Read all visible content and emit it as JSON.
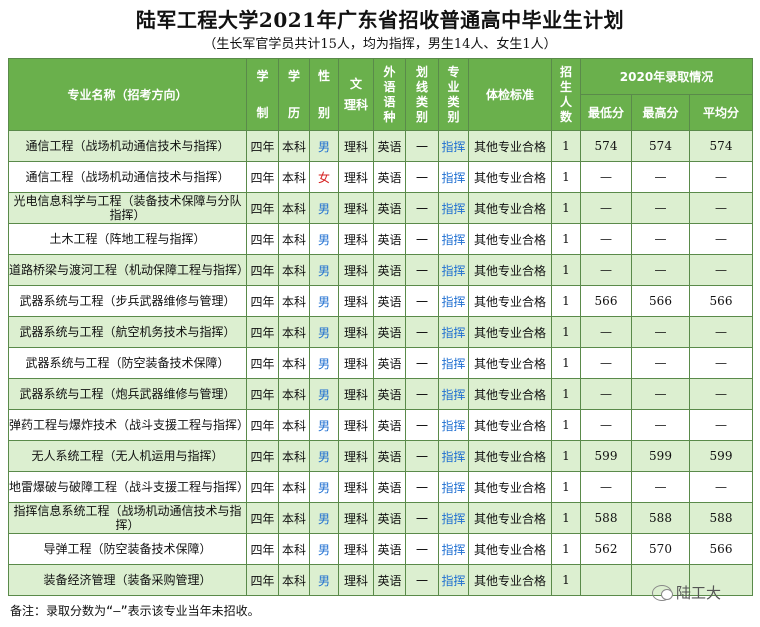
{
  "title": "陆军工程大学2021年广东省招收普通高中毕业生计划",
  "subtitle": "（生长军官学员共计15人，均为指挥，男生14人、女生1人）",
  "headers": {
    "major": "专业名称（招考方向）",
    "xuezhi": [
      "学",
      "制"
    ],
    "xueli": [
      "学",
      "历"
    ],
    "gender": [
      "性",
      "别"
    ],
    "wenli": [
      "文",
      "理科"
    ],
    "lang": [
      "外",
      "语",
      "语",
      "种"
    ],
    "line": [
      "划",
      "线",
      "类",
      "别"
    ],
    "type": [
      "专",
      "业",
      "类",
      "别"
    ],
    "physical": "体检标准",
    "quota": [
      "招",
      "生",
      "人",
      "数"
    ],
    "group2020": "2020年录取情况",
    "min": "最低分",
    "max": "最高分",
    "avg": "平均分"
  },
  "rows": [
    {
      "major": "通信工程（战场机动通信技术与指挥）",
      "xuezhi": "四年",
      "xueli": "本科",
      "gender": "男",
      "wenli": "理科",
      "lang": "英语",
      "line": "一",
      "type": "指挥",
      "physical": "其他专业合格",
      "quota": "1",
      "min": "574",
      "max": "574",
      "avg": "574"
    },
    {
      "major": "通信工程（战场机动通信技术与指挥）",
      "xuezhi": "四年",
      "xueli": "本科",
      "gender": "女",
      "wenli": "理科",
      "lang": "英语",
      "line": "一",
      "type": "指挥",
      "physical": "其他专业合格",
      "quota": "1",
      "min": "—",
      "max": "—",
      "avg": "—"
    },
    {
      "major": "光电信息科学与工程（装备技术保障与分队指挥）",
      "xuezhi": "四年",
      "xueli": "本科",
      "gender": "男",
      "wenli": "理科",
      "lang": "英语",
      "line": "一",
      "type": "指挥",
      "physical": "其他专业合格",
      "quota": "1",
      "min": "—",
      "max": "—",
      "avg": "—"
    },
    {
      "major": "土木工程（阵地工程与指挥）",
      "xuezhi": "四年",
      "xueli": "本科",
      "gender": "男",
      "wenli": "理科",
      "lang": "英语",
      "line": "一",
      "type": "指挥",
      "physical": "其他专业合格",
      "quota": "1",
      "min": "—",
      "max": "—",
      "avg": "—"
    },
    {
      "major": "道路桥梁与渡河工程（机动保障工程与指挥）",
      "xuezhi": "四年",
      "xueli": "本科",
      "gender": "男",
      "wenli": "理科",
      "lang": "英语",
      "line": "一",
      "type": "指挥",
      "physical": "其他专业合格",
      "quota": "1",
      "min": "—",
      "max": "—",
      "avg": "—"
    },
    {
      "major": "武器系统与工程（步兵武器维修与管理）",
      "xuezhi": "四年",
      "xueli": "本科",
      "gender": "男",
      "wenli": "理科",
      "lang": "英语",
      "line": "一",
      "type": "指挥",
      "physical": "其他专业合格",
      "quota": "1",
      "min": "566",
      "max": "566",
      "avg": "566"
    },
    {
      "major": "武器系统与工程（航空机务技术与指挥）",
      "xuezhi": "四年",
      "xueli": "本科",
      "gender": "男",
      "wenli": "理科",
      "lang": "英语",
      "line": "一",
      "type": "指挥",
      "physical": "其他专业合格",
      "quota": "1",
      "min": "—",
      "max": "—",
      "avg": "—"
    },
    {
      "major": "武器系统与工程（防空装备技术保障）",
      "xuezhi": "四年",
      "xueli": "本科",
      "gender": "男",
      "wenli": "理科",
      "lang": "英语",
      "line": "一",
      "type": "指挥",
      "physical": "其他专业合格",
      "quota": "1",
      "min": "—",
      "max": "—",
      "avg": "—"
    },
    {
      "major": "武器系统与工程（炮兵武器维修与管理）",
      "xuezhi": "四年",
      "xueli": "本科",
      "gender": "男",
      "wenli": "理科",
      "lang": "英语",
      "line": "一",
      "type": "指挥",
      "physical": "其他专业合格",
      "quota": "1",
      "min": "—",
      "max": "—",
      "avg": "—"
    },
    {
      "major": "弹药工程与爆炸技术（战斗支援工程与指挥）",
      "xuezhi": "四年",
      "xueli": "本科",
      "gender": "男",
      "wenli": "理科",
      "lang": "英语",
      "line": "一",
      "type": "指挥",
      "physical": "其他专业合格",
      "quota": "1",
      "min": "—",
      "max": "—",
      "avg": "—"
    },
    {
      "major": "无人系统工程（无人机运用与指挥）",
      "xuezhi": "四年",
      "xueli": "本科",
      "gender": "男",
      "wenli": "理科",
      "lang": "英语",
      "line": "一",
      "type": "指挥",
      "physical": "其他专业合格",
      "quota": "1",
      "min": "599",
      "max": "599",
      "avg": "599"
    },
    {
      "major": "地雷爆破与破障工程（战斗支援工程与指挥）",
      "xuezhi": "四年",
      "xueli": "本科",
      "gender": "男",
      "wenli": "理科",
      "lang": "英语",
      "line": "一",
      "type": "指挥",
      "physical": "其他专业合格",
      "quota": "1",
      "min": "—",
      "max": "—",
      "avg": "—"
    },
    {
      "major": "指挥信息系统工程（战场机动通信技术与指挥）",
      "xuezhi": "四年",
      "xueli": "本科",
      "gender": "男",
      "wenli": "理科",
      "lang": "英语",
      "line": "一",
      "type": "指挥",
      "physical": "其他专业合格",
      "quota": "1",
      "min": "588",
      "max": "588",
      "avg": "588"
    },
    {
      "major": "导弹工程（防空装备技术保障）",
      "xuezhi": "四年",
      "xueli": "本科",
      "gender": "男",
      "wenli": "理科",
      "lang": "英语",
      "line": "一",
      "type": "指挥",
      "physical": "其他专业合格",
      "quota": "1",
      "min": "562",
      "max": "570",
      "avg": "566"
    },
    {
      "major": "装备经济管理（装备采购管理）",
      "xuezhi": "四年",
      "xueli": "本科",
      "gender": "男",
      "wenli": "理科",
      "lang": "英语",
      "line": "一",
      "type": "指挥",
      "physical": "其他专业合格",
      "quota": "1",
      "min": "",
      "max": "",
      "avg": ""
    }
  ],
  "note": "备注：录取分数为“—”表示该专业当年未招收。",
  "watermark": "陆工大",
  "icons": {
    "watermark": "wechat-icon"
  },
  "colors": {
    "header": "#6ab04c",
    "stripe": "#dcefd0",
    "male": "#1f6fd1",
    "female": "#d62020"
  }
}
